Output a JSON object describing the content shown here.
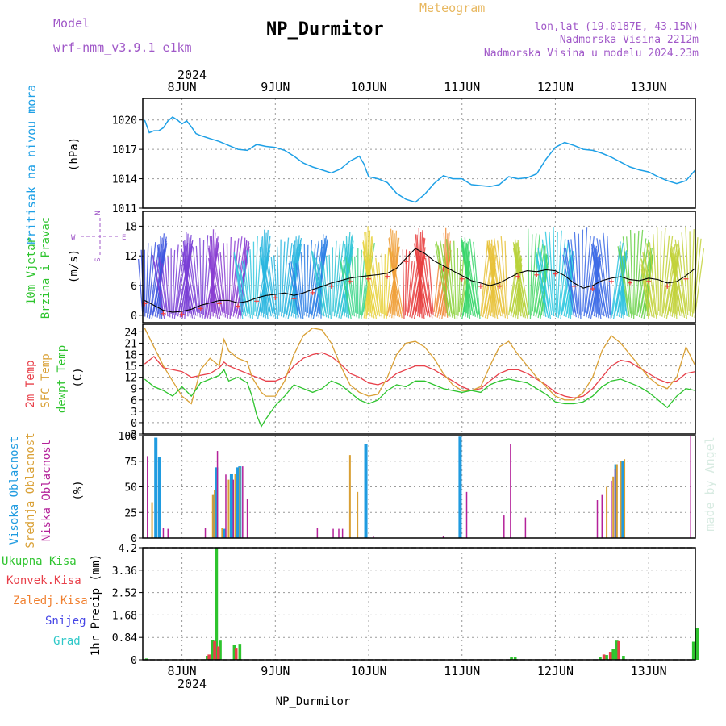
{
  "header": {
    "model_label": "Model",
    "model_name": "wrf-nmm_v3.9.1 e1km",
    "title": "NP_Durmitor",
    "product": "Meteogram",
    "lonlat": "lon,lat (19.0187E, 43.15N)",
    "altitude": "Nadmorska Visina 2212m",
    "model_altitude": "Nadmorska Visina u modelu 2024.23m"
  },
  "axis": {
    "year": "2024",
    "days": [
      "8JUN",
      "9JUN",
      "10JUN",
      "11JUN",
      "12JUN",
      "13JUN"
    ],
    "footer": "NP_Durmitor"
  },
  "watermark": "made by Angel",
  "colors": {
    "pressure": "#1ea0e6",
    "temp2m": "#e8404a",
    "sfc": "#d9a035",
    "dewpt": "#2ec42e",
    "high_cloud": "#1f9be0",
    "mid_cloud": "#d9a035",
    "low_cloud": "#b4229a",
    "total_precip": "#2ec42e",
    "conv_precip": "#e8404a",
    "frozen": "#f08030",
    "snow": "#4646e6",
    "graupel": "#2ec8c8",
    "label_pressure": "#1ea0e6",
    "label_wind": "#2ec42e",
    "label_compass": "#a058c8"
  },
  "panels": {
    "pressure": {
      "label": "Pritisak na nivou mora",
      "unit": "(hPa)"
    },
    "wind": {
      "label1": "10m Vjetar",
      "label2": "Brzina i Pravac",
      "unit": "(m/s)",
      "compass_n": "N",
      "compass_s": "S",
      "compass_e": "E",
      "compass_w": "W"
    },
    "temperature": {
      "label1": "2m Temp",
      "label2": "SFC Temp",
      "label3": "dewpt Temp",
      "unit": "(C)"
    },
    "clouds": {
      "label1": "Visoka Oblacnost",
      "label2": "Srednja Oblacnost",
      "label3": "Niska Oblacnost",
      "unit": "(%)"
    },
    "precip": {
      "unit": "1hr Precip (mm)",
      "legend": [
        "Ukupna Kisa",
        "Konvek.Kisa",
        "Zaledj.Kisa",
        "Snijeg",
        "Grad"
      ]
    }
  },
  "chart_data": [
    {
      "type": "line",
      "name": "pressure",
      "x_unit": "day of June 2024",
      "xlim": [
        7.58,
        13.5
      ],
      "ylim": [
        1011,
        1022.2
      ],
      "yticks": [
        "1011",
        "1014",
        "1017",
        "1020"
      ],
      "x": [
        7.6,
        7.65,
        7.7,
        7.75,
        7.8,
        7.85,
        7.9,
        7.95,
        8.0,
        8.05,
        8.1,
        8.15,
        8.2,
        8.3,
        8.4,
        8.5,
        8.6,
        8.7,
        8.8,
        8.9,
        9.0,
        9.1,
        9.2,
        9.3,
        9.4,
        9.5,
        9.6,
        9.7,
        9.8,
        9.9,
        9.95,
        10.0,
        10.1,
        10.2,
        10.3,
        10.4,
        10.5,
        10.6,
        10.7,
        10.8,
        10.9,
        11.0,
        11.1,
        11.2,
        11.3,
        11.4,
        11.5,
        11.6,
        11.7,
        11.8,
        11.9,
        12.0,
        12.1,
        12.2,
        12.3,
        12.4,
        12.5,
        12.6,
        12.7,
        12.8,
        12.9,
        13.0,
        13.1,
        13.2,
        13.3,
        13.4,
        13.5
      ],
      "y": [
        1020.0,
        1018.7,
        1018.9,
        1018.9,
        1019.2,
        1019.9,
        1020.3,
        1020.0,
        1019.6,
        1019.9,
        1019.3,
        1018.6,
        1018.4,
        1018.1,
        1017.8,
        1017.4,
        1017.0,
        1016.9,
        1017.5,
        1017.3,
        1017.2,
        1016.9,
        1016.3,
        1015.6,
        1015.2,
        1014.9,
        1014.6,
        1015.0,
        1015.8,
        1016.3,
        1015.5,
        1014.2,
        1014.0,
        1013.6,
        1012.5,
        1011.9,
        1011.6,
        1012.4,
        1013.5,
        1014.3,
        1014.0,
        1014.0,
        1013.4,
        1013.3,
        1013.2,
        1013.4,
        1014.2,
        1014.0,
        1014.1,
        1014.5,
        1016.0,
        1017.2,
        1017.7,
        1017.4,
        1017.0,
        1016.9,
        1016.6,
        1016.2,
        1015.7,
        1015.2,
        1014.9,
        1014.7,
        1014.2,
        1013.8,
        1013.5,
        1013.8,
        1014.9
      ]
    },
    {
      "type": "line",
      "name": "wind_speed",
      "ylim": [
        -1.5,
        21
      ],
      "yticks": [
        "0",
        "6",
        "12",
        "18"
      ],
      "x": [
        7.6,
        7.7,
        7.8,
        7.9,
        8.0,
        8.1,
        8.2,
        8.3,
        8.4,
        8.5,
        8.6,
        8.7,
        8.8,
        8.9,
        9.0,
        9.1,
        9.2,
        9.3,
        9.4,
        9.5,
        9.6,
        9.7,
        9.8,
        9.9,
        10.0,
        10.1,
        10.2,
        10.3,
        10.4,
        10.5,
        10.6,
        10.7,
        10.8,
        10.9,
        11.0,
        11.1,
        11.2,
        11.3,
        11.4,
        11.5,
        11.6,
        11.7,
        11.8,
        11.9,
        12.0,
        12.1,
        12.2,
        12.3,
        12.4,
        12.5,
        12.6,
        12.7,
        12.8,
        12.9,
        13.0,
        13.1,
        13.2,
        13.3,
        13.4,
        13.5
      ],
      "y": [
        3.0,
        2.0,
        1.0,
        0.6,
        0.8,
        1.2,
        2.0,
        2.5,
        3.0,
        3.0,
        2.5,
        2.8,
        3.5,
        4.0,
        4.2,
        4.5,
        4.0,
        4.5,
        5.2,
        5.8,
        6.5,
        7.0,
        7.5,
        7.8,
        8.0,
        8.2,
        8.5,
        9.5,
        11.5,
        13.5,
        12.5,
        11.0,
        10.0,
        9.0,
        8.0,
        7.0,
        6.5,
        6.0,
        6.5,
        7.5,
        8.5,
        9.0,
        8.8,
        9.2,
        9.0,
        8.0,
        6.5,
        5.5,
        6.0,
        7.0,
        7.5,
        7.8,
        7.2,
        7.0,
        7.5,
        7.2,
        6.5,
        6.8,
        8.0,
        9.5
      ]
    },
    {
      "type": "line",
      "name": "temperature",
      "ylim": [
        -3,
        26
      ],
      "yticks": [
        "-3",
        "0",
        "3",
        "6",
        "9",
        "12",
        "15",
        "18",
        "21",
        "24"
      ],
      "x": [
        7.6,
        7.7,
        7.8,
        7.9,
        8.0,
        8.1,
        8.2,
        8.3,
        8.4,
        8.45,
        8.5,
        8.6,
        8.7,
        8.75,
        8.8,
        8.85,
        8.9,
        9.0,
        9.1,
        9.2,
        9.3,
        9.4,
        9.5,
        9.6,
        9.7,
        9.8,
        9.9,
        10.0,
        10.1,
        10.2,
        10.3,
        10.4,
        10.5,
        10.6,
        10.7,
        10.8,
        10.9,
        11.0,
        11.1,
        11.2,
        11.3,
        11.4,
        11.5,
        11.6,
        11.7,
        11.8,
        11.9,
        12.0,
        12.1,
        12.2,
        12.3,
        12.4,
        12.5,
        12.6,
        12.7,
        12.8,
        12.9,
        13.0,
        13.1,
        13.2,
        13.3,
        13.4,
        13.5
      ],
      "series": [
        {
          "name": "2m Temp",
          "values": [
            15.5,
            17.5,
            14.5,
            14.0,
            13.5,
            12.0,
            12.5,
            13.0,
            14.5,
            16.0,
            15.0,
            14.0,
            13.0,
            12.5,
            12.0,
            11.5,
            11.0,
            11.0,
            12.0,
            15.0,
            17.0,
            18.0,
            18.5,
            17.5,
            15.5,
            13.0,
            12.0,
            10.5,
            10.0,
            11.0,
            13.0,
            14.0,
            15.0,
            15.0,
            14.0,
            12.5,
            11.0,
            9.5,
            8.5,
            9.0,
            11.0,
            13.0,
            14.0,
            14.0,
            13.0,
            11.5,
            10.0,
            8.0,
            7.0,
            6.5,
            7.0,
            9.0,
            12.0,
            15.0,
            16.5,
            16.0,
            14.5,
            13.0,
            11.5,
            10.5,
            11.0,
            13.0,
            13.5
          ]
        },
        {
          "name": "SFC Temp",
          "values": [
            25.0,
            20.0,
            15.0,
            11.0,
            7.0,
            5.0,
            14.0,
            17.0,
            15.0,
            22.0,
            19.0,
            17.0,
            16.0,
            12.0,
            10.0,
            8.0,
            7.0,
            7.0,
            11.0,
            18.0,
            23.0,
            25.0,
            24.5,
            21.0,
            15.0,
            10.0,
            8.0,
            7.0,
            7.5,
            12.0,
            18.0,
            21.0,
            21.5,
            20.0,
            17.0,
            13.0,
            10.0,
            8.5,
            8.5,
            9.5,
            15.0,
            20.0,
            21.5,
            18.0,
            15.0,
            12.0,
            9.5,
            7.0,
            6.0,
            6.0,
            8.0,
            12.0,
            19.0,
            23.0,
            21.0,
            18.0,
            15.0,
            12.0,
            10.0,
            9.0,
            12.0,
            20.0,
            15.0
          ]
        },
        {
          "name": "dewpt Temp",
          "values": [
            11.5,
            9.5,
            8.5,
            7.0,
            9.5,
            7.0,
            10.5,
            11.5,
            12.5,
            14.0,
            11.0,
            12.0,
            10.5,
            7.0,
            2.0,
            -1.0,
            1.0,
            4.5,
            7.0,
            10.0,
            9.0,
            8.0,
            9.0,
            11.0,
            10.0,
            8.0,
            6.0,
            5.0,
            6.0,
            8.5,
            10.0,
            9.5,
            11.0,
            11.0,
            10.0,
            9.0,
            8.5,
            8.0,
            8.5,
            8.0,
            10.0,
            11.0,
            11.5,
            11.0,
            10.5,
            9.0,
            7.5,
            5.5,
            5.0,
            5.0,
            5.5,
            7.0,
            9.5,
            11.0,
            11.5,
            10.5,
            9.5,
            8.0,
            6.0,
            4.0,
            7.0,
            9.0,
            8.5
          ]
        }
      ]
    },
    {
      "type": "bar",
      "name": "clouds",
      "ylim": [
        0,
        100
      ],
      "yticks": [
        "0",
        "25",
        "50",
        "75",
        "100"
      ],
      "series": [
        {
          "name": "Visoka Oblacnost",
          "bars": [
            [
              7.72,
              98
            ],
            [
              7.76,
              79
            ],
            [
              8.35,
              42
            ],
            [
              8.37,
              69
            ],
            [
              8.45,
              9
            ],
            [
              8.53,
              63
            ],
            [
              8.6,
              69
            ],
            [
              8.62,
              70
            ],
            [
              9.97,
              92
            ],
            [
              10.98,
              99
            ],
            [
              12.65,
              72
            ],
            [
              12.72,
              75
            ]
          ]
        },
        {
          "name": "Srednja Oblacnost",
          "bars": [
            [
              7.68,
              35
            ],
            [
              8.33,
              42
            ],
            [
              8.35,
              47
            ],
            [
              8.43,
              10
            ],
            [
              8.5,
              57
            ],
            [
              8.57,
              63
            ],
            [
              8.62,
              69
            ],
            [
              9.8,
              81
            ],
            [
              9.88,
              45
            ],
            [
              12.55,
              50
            ],
            [
              12.62,
              60
            ],
            [
              12.66,
              72
            ],
            [
              12.7,
              75
            ],
            [
              12.74,
              77
            ]
          ]
        },
        {
          "name": "Niska Oblacnost",
          "bars": [
            [
              7.63,
              80
            ],
            [
              7.8,
              10
            ],
            [
              7.85,
              9
            ],
            [
              8.25,
              10
            ],
            [
              8.38,
              85
            ],
            [
              8.47,
              62
            ],
            [
              8.55,
              57
            ],
            [
              8.65,
              70
            ],
            [
              8.7,
              38
            ],
            [
              9.45,
              10
            ],
            [
              9.62,
              9
            ],
            [
              9.68,
              9
            ],
            [
              9.72,
              9
            ],
            [
              10.05,
              2
            ],
            [
              10.8,
              2
            ],
            [
              11.05,
              45
            ],
            [
              11.45,
              22
            ],
            [
              11.52,
              92
            ],
            [
              11.68,
              20
            ],
            [
              12.45,
              37
            ],
            [
              12.5,
              42
            ],
            [
              12.6,
              56
            ],
            [
              12.64,
              67
            ],
            [
              13.45,
              100
            ]
          ]
        }
      ]
    },
    {
      "type": "bar",
      "name": "precip_1hr",
      "ylim": [
        0,
        4.2
      ],
      "yticks": [
        "0",
        "0.84",
        "1.68",
        "2.52",
        "3.36",
        "4.2"
      ],
      "series": [
        {
          "name": "Ukupna Kisa",
          "bars": [
            [
              7.62,
              0.05
            ],
            [
              8.27,
              0.15
            ],
            [
              8.33,
              0.75
            ],
            [
              8.37,
              4.2
            ],
            [
              8.41,
              0.72
            ],
            [
              8.56,
              0.55
            ],
            [
              8.62,
              0.6
            ],
            [
              11.53,
              0.1
            ],
            [
              11.57,
              0.12
            ],
            [
              12.48,
              0.1
            ],
            [
              12.55,
              0.18
            ],
            [
              12.62,
              0.4
            ],
            [
              12.66,
              0.72
            ],
            [
              12.73,
              0.15
            ],
            [
              13.48,
              0.68
            ],
            [
              13.52,
              1.2
            ]
          ]
        },
        {
          "name": "Konvek.Kisa",
          "bars": [
            [
              8.29,
              0.2
            ],
            [
              8.35,
              0.7
            ],
            [
              8.39,
              0.5
            ],
            [
              8.58,
              0.45
            ],
            [
              12.52,
              0.2
            ],
            [
              12.59,
              0.3
            ],
            [
              12.68,
              0.7
            ]
          ]
        }
      ]
    }
  ]
}
